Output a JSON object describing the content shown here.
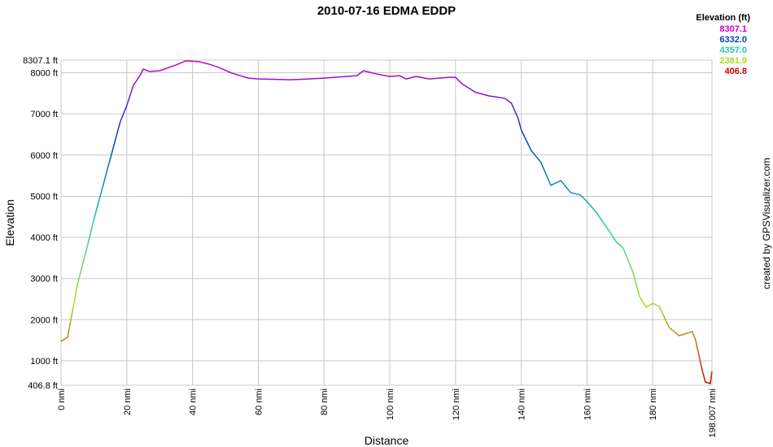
{
  "chart_data": {
    "type": "line",
    "title": "2010-07-16 EDMA EDDP",
    "x_label": "Distance",
    "y_label": "Elevation",
    "credit": "created by GPSVisualizer.com",
    "legend_title": "Elevation (ft)",
    "color_scale": {
      "values": [
        8307.1,
        6332,
        4357,
        2381.9,
        406.8
      ],
      "value_labels": [
        "8307.1",
        "6332.0",
        "4357.0",
        "2381.9",
        "406.8"
      ],
      "colors": [
        "#cc00cc",
        "#0044bb",
        "#22ccaa",
        "#aadd22",
        "#cc0000"
      ]
    },
    "grid": true,
    "xlim": [
      0,
      198.007
    ],
    "ylim": [
      406.8,
      8307.1
    ],
    "xticks": [
      {
        "value": 0,
        "label": "0 nmi"
      },
      {
        "value": 20,
        "label": "20 nmi"
      },
      {
        "value": 40,
        "label": "40 nmi"
      },
      {
        "value": 60,
        "label": "60 nmi"
      },
      {
        "value": 80,
        "label": "80 nmi"
      },
      {
        "value": 100,
        "label": "100 nmi"
      },
      {
        "value": 120,
        "label": "120 nmi"
      },
      {
        "value": 140,
        "label": "140 nmi"
      },
      {
        "value": 160,
        "label": "160 nmi"
      },
      {
        "value": 180,
        "label": "180 nmi"
      },
      {
        "value": 198.007,
        "label": "198.007 nmi"
      }
    ],
    "yticks": [
      {
        "value": 406.8,
        "label": "406.8 ft"
      },
      {
        "value": 1000,
        "label": "1000 ft"
      },
      {
        "value": 2000,
        "label": "2000 ft"
      },
      {
        "value": 3000,
        "label": "3000 ft"
      },
      {
        "value": 4000,
        "label": "4000 ft"
      },
      {
        "value": 5000,
        "label": "5000 ft"
      },
      {
        "value": 6000,
        "label": "6000 ft"
      },
      {
        "value": 7000,
        "label": "7000 ft"
      },
      {
        "value": 8000,
        "label": "8000 ft"
      },
      {
        "value": 8307.1,
        "label": "8307.1 ft"
      }
    ],
    "x": [
      0,
      2,
      5,
      8,
      10,
      13,
      15,
      18,
      20,
      22,
      24,
      25,
      27,
      30,
      35,
      38,
      42,
      45,
      48,
      52,
      57,
      60,
      70,
      80,
      90,
      92,
      96,
      100,
      103,
      105,
      108,
      112,
      118,
      120,
      122,
      126,
      130,
      135,
      137,
      139,
      140,
      143,
      146,
      149,
      152,
      155,
      158,
      160,
      163,
      166,
      169,
      171,
      174,
      176,
      178,
      180,
      182,
      185,
      188,
      192,
      193,
      195,
      196,
      197.5,
      198
    ],
    "series": [
      {
        "name": "Elevation",
        "values": [
          1473,
          1572,
          2856,
          3780,
          4436,
          5325,
          5917,
          6806,
          7200,
          7694,
          7930,
          8090,
          8030,
          8050,
          8190,
          8290,
          8270,
          8210,
          8130,
          7990,
          7870,
          7850,
          7830,
          7870,
          7930,
          8050,
          7970,
          7910,
          7930,
          7850,
          7910,
          7850,
          7890,
          7890,
          7730,
          7530,
          7440,
          7380,
          7260,
          6900,
          6610,
          6115,
          5820,
          5265,
          5380,
          5090,
          5030,
          4870,
          4590,
          4240,
          3880,
          3740,
          3150,
          2560,
          2300,
          2400,
          2320,
          1810,
          1610,
          1710,
          1510,
          782,
          486,
          446,
          742
        ]
      }
    ]
  }
}
